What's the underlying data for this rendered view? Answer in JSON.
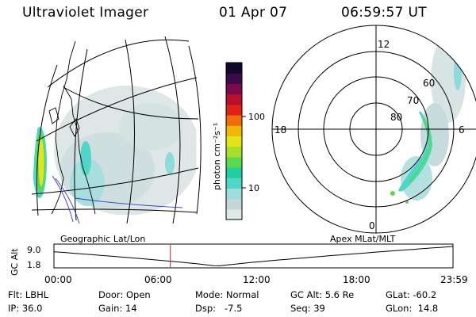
{
  "header": {
    "title": "Ultraviolet Imager",
    "date": "01 Apr 07",
    "time": "06:59:57 UT"
  },
  "colorbar": {
    "unit_label": "photon cm⁻²s⁻¹",
    "ticks": [
      "100",
      "10"
    ],
    "colors": [
      "#dfe8e8",
      "#c7d6d6",
      "#9fdcdc",
      "#4fd6c8",
      "#1fcfa0",
      "#59d94f",
      "#a6e02b",
      "#e3e51a",
      "#f2b60a",
      "#f06d0a",
      "#e0201a",
      "#b8102a",
      "#7a0a4a",
      "#3a0a4a",
      "#12082a"
    ]
  },
  "polar": {
    "lat_labels": [
      "60",
      "70",
      "80"
    ],
    "mlt_labels": [
      "12",
      "18",
      "6",
      "0"
    ]
  },
  "timeline": {
    "y_axis_label": "GC Alt",
    "y_ticks": [
      "9.0",
      "1.8"
    ],
    "left_caption": "Geographic Lat/Lon",
    "right_caption": "Apex MLat/MLT",
    "x_ticks": [
      "00:00",
      "06:00",
      "12:00",
      "18:00",
      "23:59"
    ],
    "current_fraction": 0.2917,
    "curve_color": "#000000",
    "marker_color": "#cc2222"
  },
  "info": {
    "filter": "Flt: LBHL",
    "door": "Door: Open",
    "mode": "Mode: Normal",
    "gc_alt": "GC Alt: 5.6 Re",
    "glat": "GLat: -60.2",
    "ip": "IP: 36.0",
    "gain": "Gain: 14",
    "dsp": "Dsp:   -7.5",
    "seq": "Seq: 39",
    "glon": "GLon:  14.8"
  }
}
